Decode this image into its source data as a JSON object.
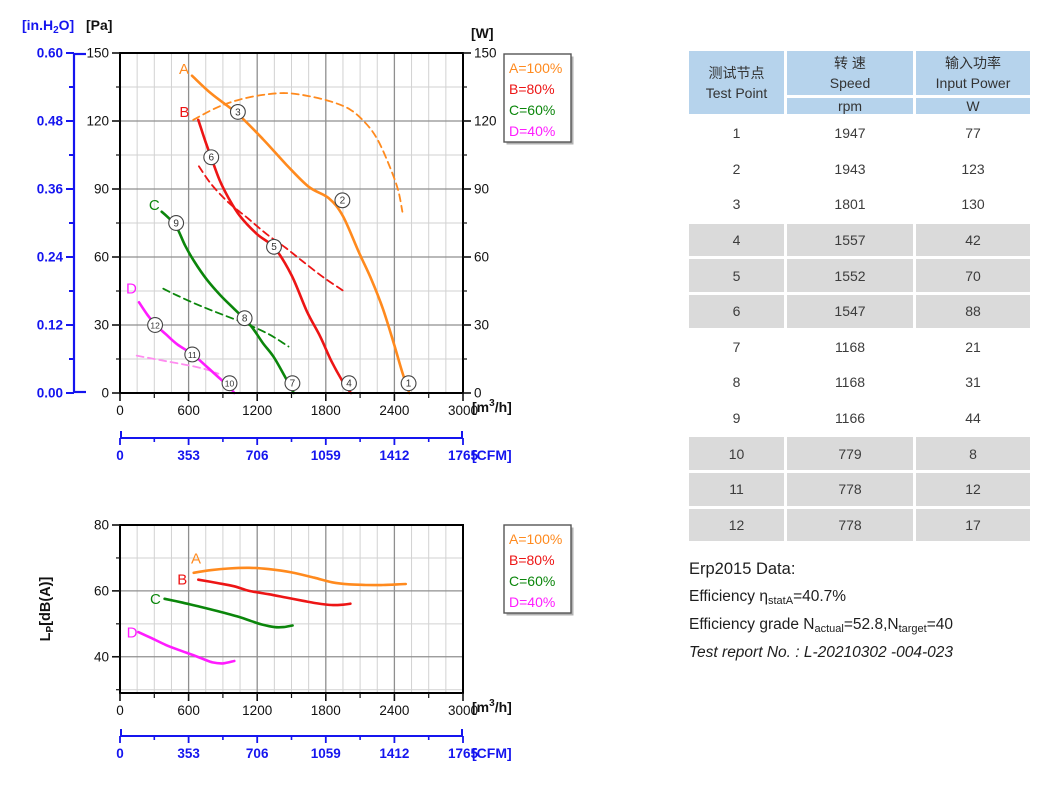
{
  "colors": {
    "A": "#ff8a1e",
    "B": "#ed1515",
    "C": "#0b860b",
    "D": "#ff1cff",
    "Dlight": "#ff8cf0",
    "blue": "#1515ef",
    "axis": "#111111",
    "grid_major": "#8f8f8f",
    "grid_minor": "#d2d2d2",
    "circle_stroke": "#444444",
    "table_header_bg": "#b6d3ec",
    "table_stripe_bg": "#dadada",
    "text_dark": "#3c3c3c"
  },
  "table": {
    "col1_zh": "测试节点",
    "col1_en": "Test Point",
    "col2_zh": "转 速",
    "col2_en": "Speed",
    "col2_unit": "rpm",
    "col3_zh": "输入功率",
    "col3_en": "Input Power",
    "col3_unit": "W",
    "rows": [
      {
        "point": "1",
        "rpm": "1947",
        "power": "77"
      },
      {
        "point": "2",
        "rpm": "1943",
        "power": "123"
      },
      {
        "point": "3",
        "rpm": "1801",
        "power": "130"
      },
      {
        "point": "4",
        "rpm": "1557",
        "power": "42"
      },
      {
        "point": "5",
        "rpm": "1552",
        "power": "70"
      },
      {
        "point": "6",
        "rpm": "1547",
        "power": "88"
      },
      {
        "point": "7",
        "rpm": "1168",
        "power": "21"
      },
      {
        "point": "8",
        "rpm": "1168",
        "power": "31"
      },
      {
        "point": "9",
        "rpm": "1166",
        "power": "44"
      },
      {
        "point": "10",
        "rpm": "779",
        "power": "8"
      },
      {
        "point": "11",
        "rpm": "778",
        "power": "12"
      },
      {
        "point": "12",
        "rpm": "778",
        "power": "17"
      }
    ]
  },
  "erp": {
    "title": "Erp2015  Data:",
    "eff_prefix": "Efficiency η",
    "eff_sub": "statA",
    "eff_value": "=40.7%",
    "grade_prefix": "Efficiency grade N",
    "grade_sub1": "actual",
    "grade_mid": "=52.8,N",
    "grade_sub2": "target",
    "grade_value": "=40",
    "report": "Test report No.  : L-20210302 -004-023"
  },
  "chart_data": [
    {
      "id": "pressure_power_vs_airflow",
      "type": "line",
      "xlabel": "[m3/h]",
      "x2label": "[CFM]",
      "y_left_label_1": "[in.H2O]",
      "y_left_label_2": "[Pa]",
      "y_right_label": "[W]",
      "xlim": [
        0,
        3000
      ],
      "x_ticks": [
        0,
        600,
        1200,
        1800,
        2400,
        3000
      ],
      "x2lim": [
        0,
        1765
      ],
      "x2_ticks": [
        0,
        353,
        706,
        1059,
        1412,
        1765
      ],
      "y_pa": {
        "lim": [
          0,
          150
        ],
        "ticks": [
          0,
          30,
          60,
          90,
          120,
          150
        ]
      },
      "y_inh2o": {
        "lim": [
          0,
          0.6
        ],
        "ticks": [
          "0.00",
          "0.12",
          "0.24",
          "0.36",
          "0.48",
          "0.60"
        ]
      },
      "y_w": {
        "lim": [
          0,
          150
        ],
        "ticks": [
          0,
          30,
          60,
          90,
          120,
          150
        ]
      },
      "grid": {
        "x_minor_step": 150,
        "x_major_step": 600,
        "y_minor_step": 15,
        "y_major_step": 30
      },
      "legend": {
        "position": "top-right",
        "items": [
          {
            "label": "A=100%",
            "color_key": "A"
          },
          {
            "label": "B=80%",
            "color_key": "B"
          },
          {
            "label": "C=60%",
            "color_key": "C"
          },
          {
            "label": "D=40%",
            "color_key": "D"
          }
        ]
      },
      "series": [
        {
          "name": "A input power (W)",
          "style": "dashed",
          "color_key": "A",
          "points": [
            [
              640,
              120.5
            ],
            [
              850,
              126
            ],
            [
              1050,
              129.5
            ],
            [
              1250,
              131.5
            ],
            [
              1450,
              132.3
            ],
            [
              1650,
              131
            ],
            [
              1850,
              128.5
            ],
            [
              2015,
              125
            ],
            [
              2150,
              119
            ],
            [
              2250,
              112
            ],
            [
              2350,
              101
            ],
            [
              2430,
              90
            ],
            [
              2470,
              80
            ]
          ]
        },
        {
          "name": "B input power (W)",
          "style": "dashed",
          "color_key": "B",
          "points": [
            [
              690,
              100
            ],
            [
              800,
              92
            ],
            [
              950,
              84
            ],
            [
              1120,
              77
            ],
            [
              1285,
              70
            ],
            [
              1450,
              64
            ],
            [
              1600,
              58
            ],
            [
              1780,
              51
            ],
            [
              1956,
              45
            ]
          ]
        },
        {
          "name": "C input power (W)",
          "style": "dashed",
          "color_key": "C",
          "points": [
            [
              379,
              46
            ],
            [
              500,
              43
            ],
            [
              700,
              38.5
            ],
            [
              900,
              34.5
            ],
            [
              1105,
              30.5
            ],
            [
              1300,
              26
            ],
            [
              1474,
              20.5
            ]
          ]
        },
        {
          "name": "D input power (W)",
          "style": "dashed",
          "color_key": "Dlight",
          "points": [
            [
              146,
              16.5
            ],
            [
              300,
              15
            ],
            [
              460,
              13.5
            ],
            [
              640,
              11.8
            ],
            [
              760,
              10.3
            ],
            [
              861,
              8.5
            ]
          ]
        },
        {
          "name": "A static pressure (Pa)",
          "style": "solid",
          "color_key": "A",
          "points": [
            [
              630,
              140
            ],
            [
              800,
              132
            ],
            [
              1031,
              123
            ],
            [
              1250,
              112
            ],
            [
              1450,
              101
            ],
            [
              1650,
              91
            ],
            [
              1825,
              86
            ],
            [
              1950,
              78
            ],
            [
              2090,
              62
            ],
            [
              2200,
              50
            ],
            [
              2300,
              37
            ],
            [
              2400,
              21
            ],
            [
              2470,
              9
            ],
            [
              2530,
              0
            ]
          ]
        },
        {
          "name": "B static pressure (Pa)",
          "style": "solid",
          "color_key": "B",
          "points": [
            [
              685,
              120.5
            ],
            [
              740,
              112
            ],
            [
              797,
              104
            ],
            [
              870,
              94
            ],
            [
              950,
              86
            ],
            [
              1050,
              78
            ],
            [
              1200,
              70
            ],
            [
              1352,
              64
            ],
            [
              1500,
              52
            ],
            [
              1635,
              36
            ],
            [
              1750,
              25
            ],
            [
              1850,
              14
            ],
            [
              1960,
              4
            ],
            [
              2020,
              0
            ]
          ]
        },
        {
          "name": "C static pressure (Pa)",
          "style": "solid",
          "color_key": "C",
          "points": [
            [
              365,
              80
            ],
            [
              430,
              77
            ],
            [
              497,
              73
            ],
            [
              570,
              65
            ],
            [
              650,
              58
            ],
            [
              760,
              50
            ],
            [
              880,
              43
            ],
            [
              1000,
              37
            ],
            [
              1139,
              30
            ],
            [
              1250,
              22
            ],
            [
              1343,
              16
            ],
            [
              1445,
              7
            ],
            [
              1520,
              0
            ]
          ]
        },
        {
          "name": "D static pressure (Pa)",
          "style": "solid",
          "color_key": "D",
          "points": [
            [
              166,
              40
            ],
            [
              240,
              34.5
            ],
            [
              313,
              30
            ],
            [
              400,
              26
            ],
            [
              500,
              21.5
            ],
            [
              637,
              17
            ],
            [
              750,
              12
            ],
            [
              860,
              7
            ],
            [
              950,
              3
            ],
            [
              1000,
              0
            ]
          ]
        }
      ],
      "series_labels": [
        {
          "text": "A",
          "x": 560,
          "y": 143,
          "color_key": "A"
        },
        {
          "text": "B",
          "x": 563,
          "y": 124,
          "color_key": "B"
        },
        {
          "text": "C",
          "x": 300,
          "y": 83,
          "color_key": "C"
        },
        {
          "text": "D",
          "x": 100,
          "y": 46,
          "color_key": "D"
        }
      ],
      "test_points": [
        {
          "n": "1",
          "x": 2524,
          "y": 4.3
        },
        {
          "n": "2",
          "x": 1945,
          "y": 85
        },
        {
          "n": "3",
          "x": 1031,
          "y": 124
        },
        {
          "n": "4",
          "x": 2003,
          "y": 4.3
        },
        {
          "n": "5",
          "x": 1347,
          "y": 64.5
        },
        {
          "n": "6",
          "x": 798,
          "y": 104
        },
        {
          "n": "7",
          "x": 1508,
          "y": 4.3
        },
        {
          "n": "8",
          "x": 1090,
          "y": 33
        },
        {
          "n": "9",
          "x": 491,
          "y": 75
        },
        {
          "n": "10",
          "x": 958,
          "y": 4.3
        },
        {
          "n": "11",
          "x": 632,
          "y": 17
        },
        {
          "n": "12",
          "x": 307,
          "y": 30
        }
      ]
    },
    {
      "id": "noise_vs_airflow",
      "type": "line",
      "xlabel": "[m3/h]",
      "x2label": "[CFM]",
      "ylabel": "Lp[dB(A)]",
      "xlim": [
        0,
        3000
      ],
      "x_ticks": [
        0,
        600,
        1200,
        1800,
        2400,
        3000
      ],
      "x2lim": [
        0,
        1765
      ],
      "x2_ticks": [
        0,
        353,
        706,
        1059,
        1412,
        1765
      ],
      "ylim": [
        29,
        80
      ],
      "y_ticks": [
        40,
        60,
        80
      ],
      "y_minor_ticks": [
        30,
        50,
        70
      ],
      "grid": {
        "x_minor_step": 150,
        "x_major_step": 600
      },
      "legend": {
        "position": "right",
        "items": [
          {
            "label": "A=100%",
            "color_key": "A"
          },
          {
            "label": "B=80%",
            "color_key": "B"
          },
          {
            "label": "C=60%",
            "color_key": "C"
          },
          {
            "label": "D=40%",
            "color_key": "D"
          }
        ]
      },
      "series": [
        {
          "name": "A noise dB(A)",
          "style": "solid",
          "color_key": "A",
          "points": [
            [
              645,
              65.5
            ],
            [
              800,
              66.3
            ],
            [
              950,
              66.8
            ],
            [
              1130,
              67
            ],
            [
              1300,
              66.6
            ],
            [
              1500,
              65.6
            ],
            [
              1700,
              64
            ],
            [
              1855,
              62.6
            ],
            [
              2000,
              62
            ],
            [
              2150,
              61.8
            ],
            [
              2300,
              61.8
            ],
            [
              2500,
              62.1
            ]
          ]
        },
        {
          "name": "B noise dB(A)",
          "style": "solid",
          "color_key": "B",
          "points": [
            [
              685,
              63.4
            ],
            [
              850,
              62.4
            ],
            [
              1000,
              61.4
            ],
            [
              1130,
              60
            ],
            [
              1300,
              59
            ],
            [
              1450,
              58
            ],
            [
              1600,
              57
            ],
            [
              1710,
              56.3
            ],
            [
              1850,
              55.7
            ],
            [
              1950,
              55.8
            ],
            [
              2015,
              56.1
            ]
          ]
        },
        {
          "name": "C noise dB(A)",
          "style": "solid",
          "color_key": "C",
          "points": [
            [
              390,
              57.6
            ],
            [
              550,
              56.4
            ],
            [
              700,
              55.2
            ],
            [
              850,
              53.9
            ],
            [
              1040,
              52.1
            ],
            [
              1150,
              50.8
            ],
            [
              1250,
              49.7
            ],
            [
              1350,
              49
            ],
            [
              1430,
              49
            ],
            [
              1510,
              49.5
            ]
          ]
        },
        {
          "name": "D noise dB(A)",
          "style": "solid",
          "color_key": "D",
          "points": [
            [
              160,
              47.5
            ],
            [
              280,
              45.6
            ],
            [
              400,
              43.6
            ],
            [
              520,
              42
            ],
            [
              640,
              40.5
            ],
            [
              730,
              39.3
            ],
            [
              810,
              38.3
            ],
            [
              900,
              38
            ],
            [
              1000,
              38.7
            ]
          ]
        }
      ],
      "series_labels": [
        {
          "text": "A",
          "x": 665,
          "y": 69.8,
          "color_key": "A"
        },
        {
          "text": "B",
          "x": 545,
          "y": 63.4,
          "color_key": "B"
        },
        {
          "text": "C",
          "x": 310,
          "y": 57.6,
          "color_key": "C"
        },
        {
          "text": "D",
          "x": 105,
          "y": 47.4,
          "color_key": "D"
        }
      ]
    }
  ]
}
